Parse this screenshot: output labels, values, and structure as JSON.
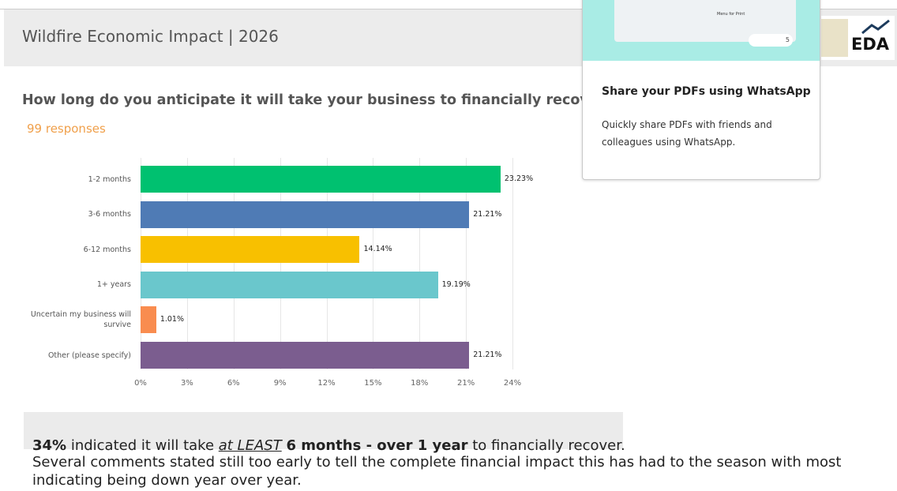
{
  "header": {
    "title": "Wildfire Economic Impact | 2026"
  },
  "chart_data": {
    "type": "bar",
    "orientation": "horizontal",
    "title": "How long do you anticipate it will take your business to financially recove",
    "subtitle": "99 responses",
    "categories": [
      "1-2 months",
      "3-6 months",
      "6-12 months",
      "1+ years",
      "Uncertain my business will survive",
      "Other (please specify)"
    ],
    "values": [
      23.23,
      21.21,
      14.14,
      19.19,
      1.01,
      21.21
    ],
    "value_labels": [
      "23.23%",
      "21.21%",
      "14.14%",
      "19.19%",
      "1.01%",
      "21.21%"
    ],
    "colors": [
      "#00c170",
      "#4f7bb5",
      "#f8c000",
      "#6ac7cc",
      "#f98c4f",
      "#7b5d8f"
    ],
    "xlim": [
      0,
      24
    ],
    "xticks": [
      {
        "value": 0,
        "label": "0%"
      },
      {
        "value": 3,
        "label": "3%"
      },
      {
        "value": 6,
        "label": "6%"
      },
      {
        "value": 9,
        "label": "9%"
      },
      {
        "value": 12,
        "label": "12%"
      },
      {
        "value": 15,
        "label": "15%"
      },
      {
        "value": 18,
        "label": "18%"
      },
      {
        "value": 21,
        "label": "21%"
      },
      {
        "value": 24,
        "label": "24%"
      }
    ],
    "grid": true
  },
  "summary": [
    "34%",
    " indicated it will take ",
    "at LEAST",
    " ",
    "6 months - over 1 year",
    " to financially recover."
  ],
  "comment": "Several comments stated still too early to tell the complete financial impact this has had to the season with most indicating being down year over year.",
  "popup": {
    "preview_item": "Menu for Print",
    "reaction_count": "5",
    "title": "Share your PDFs using WhatsApp",
    "body": "Quickly share PDFs with friends and colleagues using WhatsApp."
  },
  "logo": {
    "text": "EDA"
  }
}
